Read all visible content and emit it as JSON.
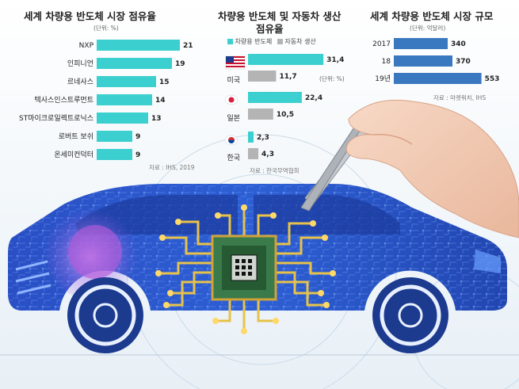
{
  "chart_data": [
    {
      "type": "bar",
      "title": "세계 차량용 반도체 시장 점유율",
      "unit": "(단위: %)",
      "categories": [
        "NXP",
        "인피니언",
        "르네사스",
        "텍사스인스트루먼트",
        "ST마이크로일렉트로닉스",
        "로버트 보쉬",
        "온세미컨덕터"
      ],
      "values": [
        21,
        19,
        15,
        14,
        13,
        9,
        9
      ],
      "source": "자료 : IHS, 2019",
      "color": "#3ccfcf",
      "xlim": [
        0,
        22
      ]
    },
    {
      "type": "bar",
      "title_line1": "차량용 반도체 및 자동차 생산",
      "title_line2": "점유율",
      "unit": "(단위: %)",
      "categories": [
        "미국",
        "일본",
        "한국"
      ],
      "series": [
        {
          "name": "차량용 반도체",
          "values": [
            31.4,
            22.4,
            2.3
          ],
          "labels": [
            "31,4",
            "22,4",
            "2,3"
          ],
          "color": "#3ccfcf"
        },
        {
          "name": "자동차 생산",
          "values": [
            11.7,
            10.5,
            4.3
          ],
          "labels": [
            "11,7",
            "10,5",
            "4,3"
          ],
          "color": "#b4b4b4"
        }
      ],
      "source": "자료 : 한국무역협회",
      "xlim": [
        0,
        33
      ]
    },
    {
      "type": "bar",
      "title": "세계 차량용 반도체 시장 규모",
      "unit": "(단위: 억달러)",
      "categories": [
        "2017",
        "18",
        "19년"
      ],
      "values": [
        340,
        370,
        553
      ],
      "source": "자료 : 마켓워치, IHS",
      "color": "#3a78c0",
      "xlim": [
        0,
        560
      ]
    }
  ]
}
